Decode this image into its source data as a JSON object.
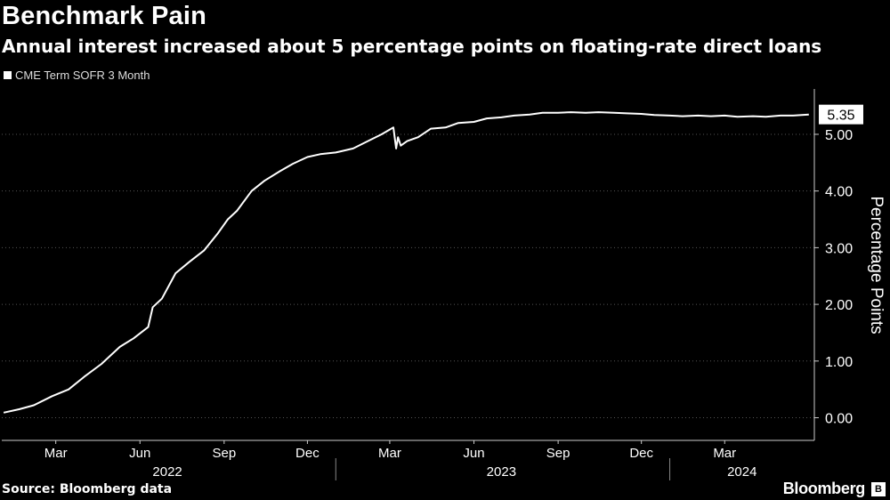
{
  "header": {
    "title": "Benchmark Pain",
    "subtitle": "Annual interest increased about 5 percentage points on floating-rate direct loans"
  },
  "footer": {
    "source": "Source: Bloomberg data",
    "brand": "Bloomberg",
    "brand_icon": "bloomberg-logo-icon"
  },
  "colors": {
    "background": "#000000",
    "line": "#ffffff",
    "grid": "#555555"
  },
  "chart_data": {
    "type": "line",
    "title": "Benchmark Pain",
    "subtitle": "Annual interest increased about 5 percentage points on floating-rate direct loans",
    "ylabel": "Percentage Points",
    "xlabel": "",
    "legend": "top-left",
    "grid": true,
    "ylim": [
      -0.4,
      5.8
    ],
    "xlim": [
      "2022-01-01",
      "2024-06-07"
    ],
    "y_ticks": [
      "0.00",
      "1.00",
      "2.00",
      "3.00",
      "4.00",
      "5.00"
    ],
    "x_tick_labels": [
      {
        "date": "2022-03-01",
        "label": "Mar"
      },
      {
        "date": "2022-06-01",
        "label": "Jun"
      },
      {
        "date": "2022-09-01",
        "label": "Sep"
      },
      {
        "date": "2022-12-01",
        "label": "Dec"
      },
      {
        "date": "2023-03-01",
        "label": "Mar"
      },
      {
        "date": "2023-06-01",
        "label": "Jun"
      },
      {
        "date": "2023-09-01",
        "label": "Sep"
      },
      {
        "date": "2023-12-01",
        "label": "Dec"
      },
      {
        "date": "2024-03-01",
        "label": "Mar"
      }
    ],
    "year_labels": [
      {
        "label": "2022",
        "center": "2022-07-01"
      },
      {
        "label": "2023",
        "center": "2023-07-01"
      },
      {
        "label": "2024",
        "center": "2024-03-20"
      }
    ],
    "year_dividers": [
      "2023-01-01",
      "2024-01-01"
    ],
    "last_value_label": "5.35",
    "series": [
      {
        "name": "CME Term SOFR 3 Month",
        "x": [
          "2022-01-03",
          "2022-01-20",
          "2022-02-05",
          "2022-02-25",
          "2022-03-15",
          "2022-04-01",
          "2022-04-20",
          "2022-05-10",
          "2022-05-25",
          "2022-06-10",
          "2022-06-15",
          "2022-06-25",
          "2022-07-10",
          "2022-07-25",
          "2022-08-10",
          "2022-08-25",
          "2022-09-05",
          "2022-09-15",
          "2022-10-01",
          "2022-10-15",
          "2022-11-01",
          "2022-11-15",
          "2022-12-01",
          "2022-12-15",
          "2023-01-01",
          "2023-01-20",
          "2023-02-05",
          "2023-02-20",
          "2023-03-05",
          "2023-03-08",
          "2023-03-10",
          "2023-03-13",
          "2023-03-20",
          "2023-04-01",
          "2023-04-15",
          "2023-05-01",
          "2023-05-15",
          "2023-06-01",
          "2023-06-15",
          "2023-07-01",
          "2023-07-15",
          "2023-08-01",
          "2023-08-15",
          "2023-09-01",
          "2023-09-15",
          "2023-10-01",
          "2023-10-15",
          "2023-11-01",
          "2023-11-15",
          "2023-12-01",
          "2023-12-15",
          "2024-01-01",
          "2024-01-15",
          "2024-02-01",
          "2024-02-15",
          "2024-03-01",
          "2024-03-15",
          "2024-04-01",
          "2024-04-15",
          "2024-05-01",
          "2024-05-15",
          "2024-06-01"
        ],
        "values": [
          0.09,
          0.15,
          0.22,
          0.38,
          0.5,
          0.72,
          0.95,
          1.25,
          1.4,
          1.6,
          1.95,
          2.1,
          2.55,
          2.75,
          2.95,
          3.25,
          3.5,
          3.65,
          4.0,
          4.18,
          4.35,
          4.48,
          4.6,
          4.65,
          4.68,
          4.75,
          4.88,
          5.0,
          5.12,
          4.75,
          4.95,
          4.8,
          4.88,
          4.95,
          5.1,
          5.12,
          5.2,
          5.22,
          5.28,
          5.3,
          5.33,
          5.35,
          5.38,
          5.38,
          5.39,
          5.38,
          5.39,
          5.38,
          5.37,
          5.36,
          5.34,
          5.33,
          5.32,
          5.33,
          5.32,
          5.33,
          5.31,
          5.32,
          5.31,
          5.33,
          5.33,
          5.35
        ]
      }
    ]
  }
}
